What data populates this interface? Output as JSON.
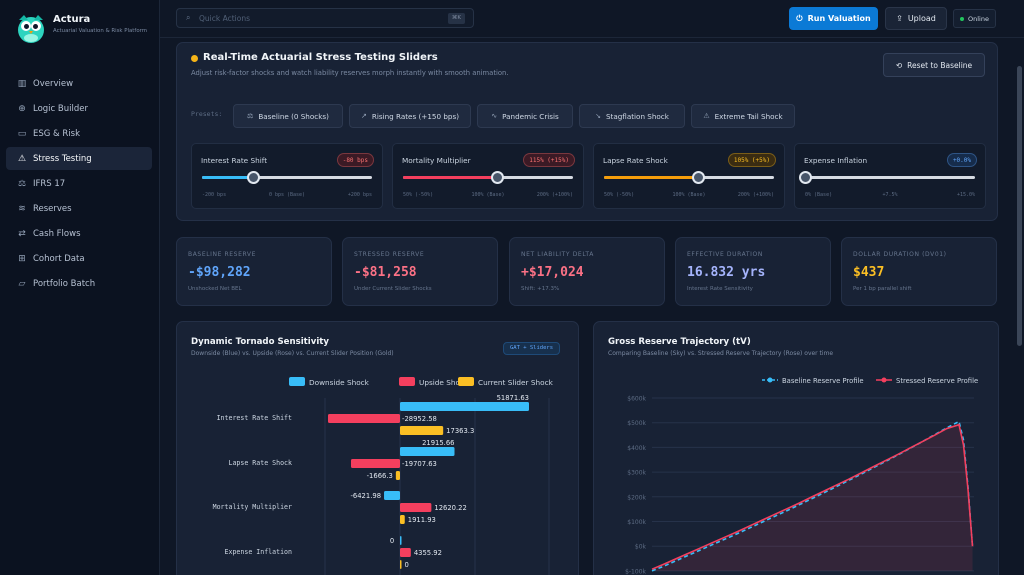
{
  "brand": {
    "name": "Actura",
    "subtitle": "Actuarial Valuation & Risk Platform",
    "logo": "owl-logo"
  },
  "nav": [
    {
      "label": "Overview",
      "icon": "bar-chart-icon",
      "glyph": "▥"
    },
    {
      "label": "Logic Builder",
      "icon": "globe-icon",
      "glyph": "⊕"
    },
    {
      "label": "ESG & Risk",
      "icon": "monitor-icon",
      "glyph": "▭"
    },
    {
      "label": "Stress Testing",
      "icon": "warning-icon",
      "glyph": "⚠",
      "active": true
    },
    {
      "label": "IFRS 17",
      "icon": "scale-icon",
      "glyph": "⚖"
    },
    {
      "label": "Reserves",
      "icon": "database-icon",
      "glyph": "≋"
    },
    {
      "label": "Cash Flows",
      "icon": "arrows-icon",
      "glyph": "⇄"
    },
    {
      "label": "Cohort Data",
      "icon": "table-icon",
      "glyph": "⊞"
    },
    {
      "label": "Portfolio Batch",
      "icon": "folder-icon",
      "glyph": "▱"
    }
  ],
  "topbar": {
    "search_placeholder": "Quick Actions",
    "shortcut": "⌘K",
    "run_label": "Run Valuation",
    "upload_label": "Upload",
    "status_label": "Online"
  },
  "stress": {
    "title": "Real-Time Actuarial Stress Testing Sliders",
    "subtitle": "Adjust risk-factor shocks and watch liability reserves morph instantly with smooth animation.",
    "reset_label": "Reset to Baseline",
    "presets_label": "Presets:",
    "presets": [
      {
        "label": "Baseline (0 Shocks)",
        "icon": "balance-icon",
        "glyph": "⚖"
      },
      {
        "label": "Rising Rates (+150 bps)",
        "icon": "trend-up-icon",
        "glyph": "↗"
      },
      {
        "label": "Pandemic Crisis",
        "icon": "pulse-icon",
        "glyph": "∿"
      },
      {
        "label": "Stagflation Shock",
        "icon": "trend-down-icon",
        "glyph": "↘"
      },
      {
        "label": "Extreme Tail Shock",
        "icon": "warning-icon",
        "glyph": "⚠"
      }
    ],
    "sliders": [
      {
        "label": "Interest Rate Shift",
        "badge": "-80 bps",
        "fraction": 0.3,
        "color": "#38bdf8",
        "badge_fg": "#f87171",
        "badge_bg": "#3b1a25",
        "ticks": [
          "-200 bps",
          "0 bps (Base)",
          "+200 bps"
        ]
      },
      {
        "label": "Mortality Multiplier",
        "badge": "115% (+15%)",
        "fraction": 0.55,
        "color": "#f43f5e",
        "badge_fg": "#f87171",
        "badge_bg": "#3b1a25",
        "ticks": [
          "50% (-50%)",
          "100% (Base)",
          "200% (+100%)"
        ]
      },
      {
        "label": "Lapse Rate Shock",
        "badge": "105% (+5%)",
        "fraction": 0.55,
        "color": "#f59e0b",
        "badge_fg": "#fbbf24",
        "badge_bg": "#3a2c12",
        "ticks": [
          "50% (-50%)",
          "100% (Base)",
          "200% (+100%)"
        ]
      },
      {
        "label": "Expense Inflation",
        "badge": "+0.0%",
        "fraction": 0.0,
        "color": "#38bdf8",
        "badge_fg": "#60a5fa",
        "badge_bg": "#162c4b",
        "ticks": [
          "0% (Base)",
          "+7.5%",
          "+15.0%"
        ]
      }
    ]
  },
  "metrics": [
    {
      "label": "BASELINE RESERVE",
      "value": "-$98,282",
      "sub": "Unshocked Net BEL",
      "color": "#60a5fa"
    },
    {
      "label": "STRESSED RESERVE",
      "value": "-$81,258",
      "sub": "Under Current Slider Shocks",
      "color": "#fb7185"
    },
    {
      "label": "NET LIABILITY DELTA",
      "value": "+$17,024",
      "sub": "Shift: +17.3%",
      "color": "#fb7185"
    },
    {
      "label": "EFFECTIVE DURATION",
      "value": "16.832 yrs",
      "sub": "Interest Rate Sensitivity",
      "color": "#a5b4fc"
    },
    {
      "label": "DOLLAR DURATION (DV01)",
      "value": "$437",
      "sub": "Per 1 bp parallel shift",
      "color": "#fbbf24"
    }
  ],
  "chart_data": [
    {
      "type": "bar",
      "title": "Dynamic Tornado Sensitivity",
      "subtitle": "Downside (Blue) vs. Upside (Rose) vs. Current Slider Position (Gold)",
      "badge": "GAT + Sliders",
      "orientation": "horizontal",
      "categories": [
        "Interest Rate Shift",
        "Lapse Rate Shock",
        "Mortality Multiplier",
        "Expense Inflation"
      ],
      "legend_position": "top",
      "series": [
        {
          "name": "Downside Shock",
          "color": "#38bdf8",
          "values": [
            51871.63,
            21915.66,
            -6421.98,
            0
          ],
          "labels": [
            "51871.63",
            "21915.66",
            "-6421.98",
            "0"
          ]
        },
        {
          "name": "Upside Shock",
          "color": "#f43f5e",
          "values": [
            -28952.58,
            -19707.63,
            12620.22,
            4355.92
          ],
          "labels": [
            "-28952.58",
            "-19707.63",
            "12620.22",
            "4355.92"
          ]
        },
        {
          "name": "Current Slider Shock",
          "color": "#fbbf24",
          "values": [
            17363.3,
            -1666.3,
            1911.93,
            0
          ],
          "labels": [
            "17363.3",
            "-1666.3",
            "1911.93",
            "0"
          ]
        }
      ]
    },
    {
      "type": "line",
      "title": "Gross Reserve Trajectory (tV)",
      "subtitle": "Comparing Baseline (Sky) vs. Stressed Reserve Trajectory (Rose) over time",
      "legend_position": "top-right",
      "y_ticks": [
        "$600k",
        "$500k",
        "$400k",
        "$300k",
        "$200k",
        "$100k",
        "$0k",
        "$-100k"
      ],
      "ylim": [
        -100000,
        600000
      ],
      "grid": true,
      "series": [
        {
          "name": "Baseline Reserve Profile",
          "color": "#38bdf8",
          "dashed": true,
          "values": [
            -100000,
            -80000,
            -58000,
            -36000,
            -14000,
            8000,
            30000,
            52000,
            75000,
            98000,
            121000,
            144000,
            168000,
            192000,
            216000,
            241000,
            266000,
            291000,
            317000,
            343000,
            369000,
            396000,
            423000,
            451000,
            479000,
            505000,
            430000,
            240000,
            0
          ]
        },
        {
          "name": "Stressed Reserve Profile",
          "color": "#f43f5e",
          "dashed": false,
          "values": [
            -93000,
            -72000,
            -50000,
            -28000,
            -6000,
            16000,
            38000,
            60000,
            83000,
            106000,
            129000,
            152000,
            175000,
            199000,
            223000,
            247000,
            271000,
            296000,
            321000,
            346000,
            371000,
            397000,
            423000,
            449000,
            476000,
            492000,
            410000,
            230000,
            0
          ]
        }
      ]
    }
  ]
}
